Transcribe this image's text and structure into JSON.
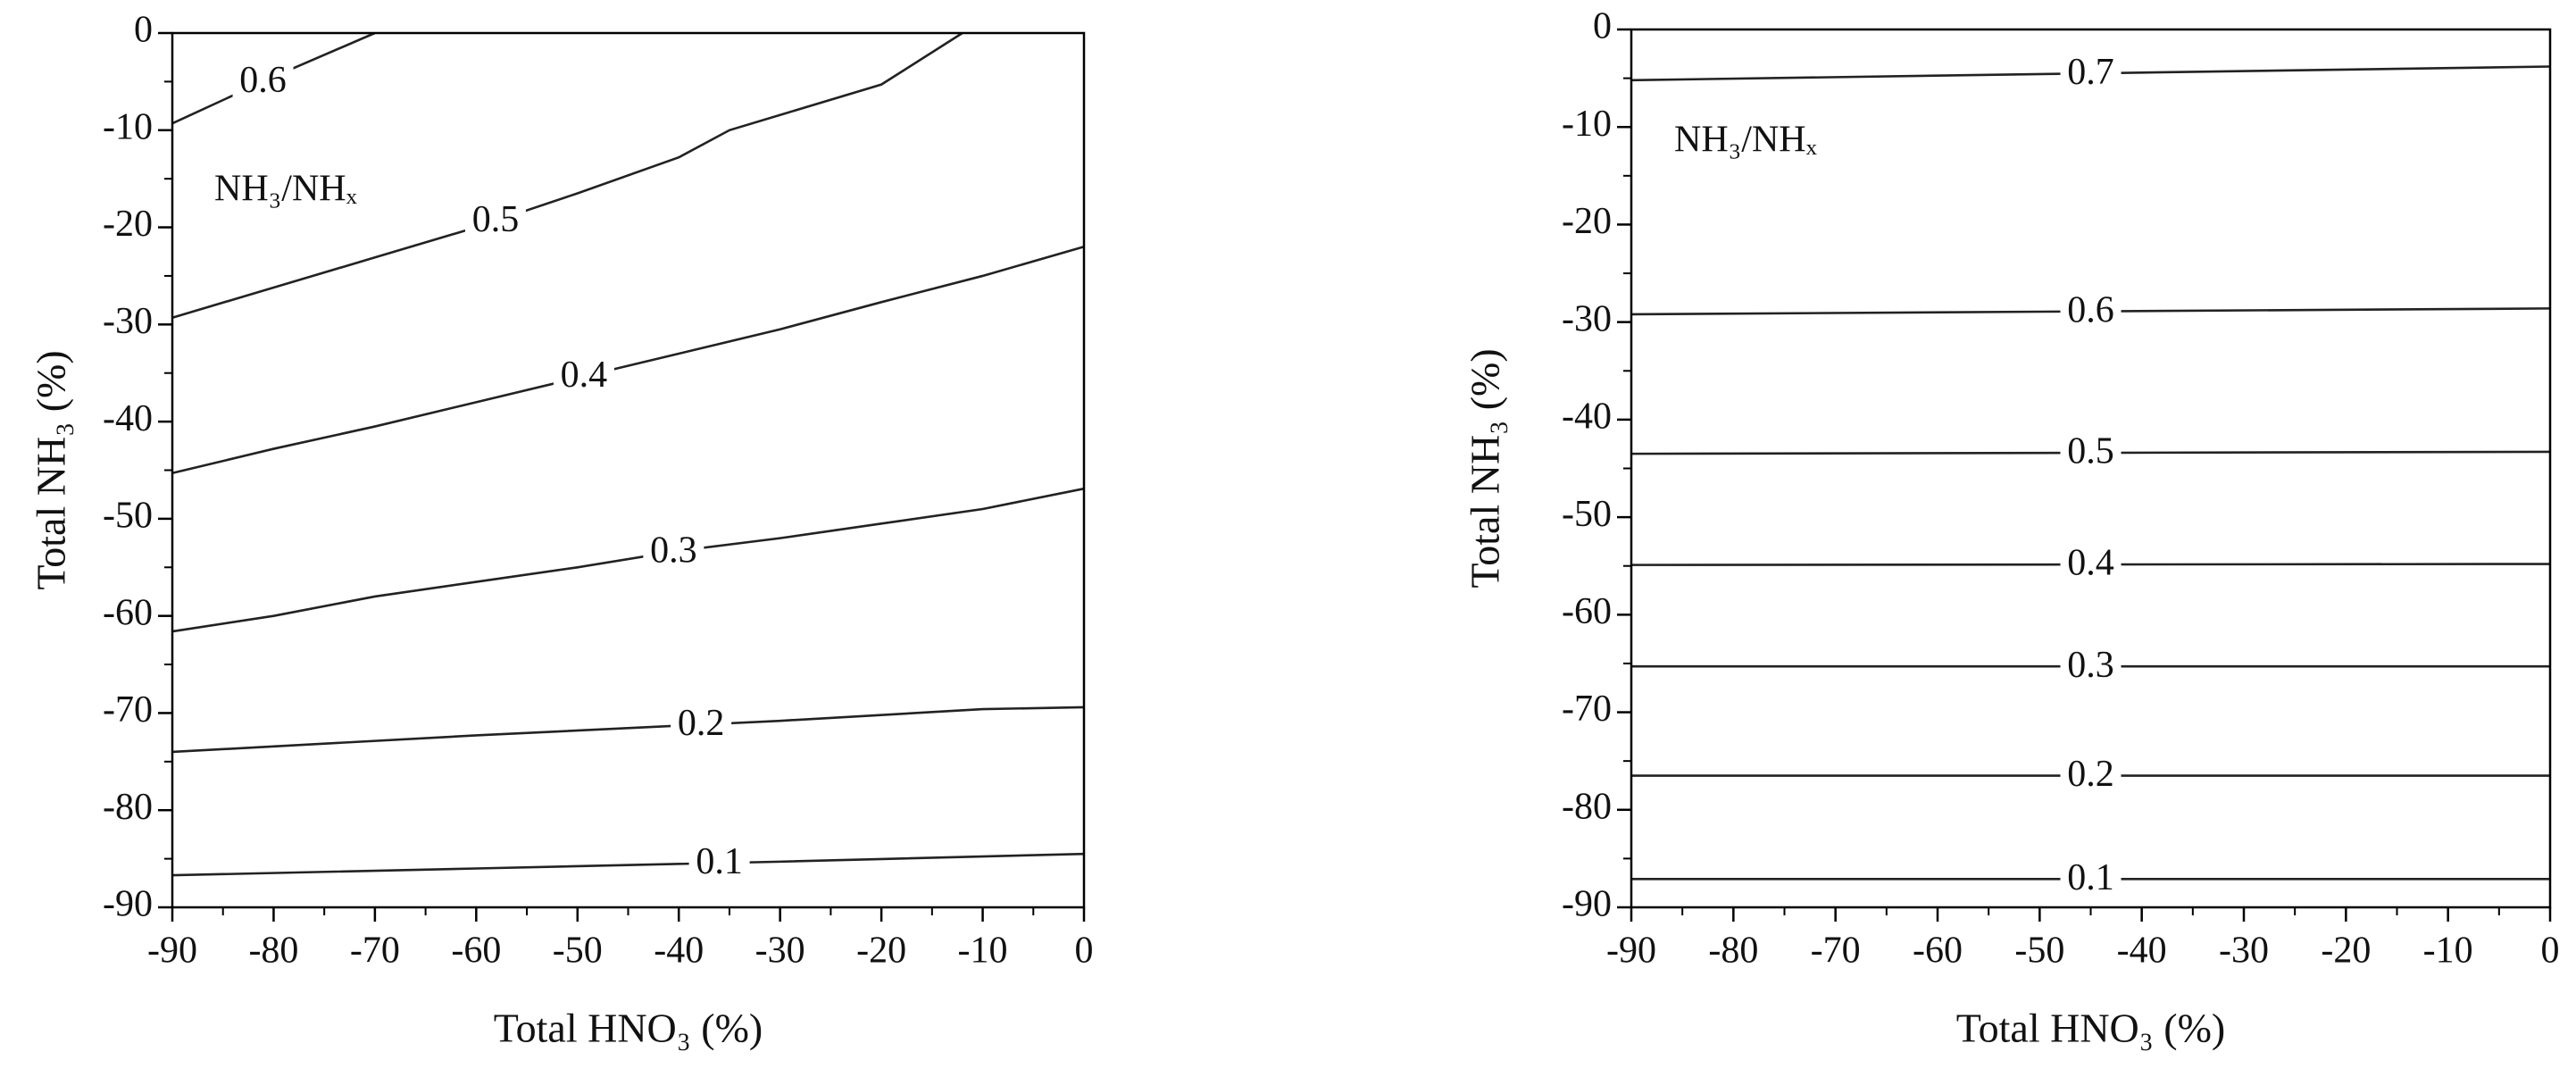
{
  "chart_data": [
    {
      "type": "contour",
      "xlabel": "Total HNO₃ (%)",
      "ylabel": "Total NH₃ (%)",
      "annotation": "NH₃/NHₓ",
      "xlim": [
        -90,
        0
      ],
      "ylim": [
        -90,
        0
      ],
      "xticks": [
        -90,
        -80,
        -70,
        -60,
        -50,
        -40,
        -30,
        -20,
        -10,
        0
      ],
      "yticks": [
        0,
        -10,
        -20,
        -30,
        -40,
        -50,
        -60,
        -70,
        -80,
        -90
      ],
      "series": [
        {
          "name": "0.6",
          "color": "#222222",
          "x": [
            -90,
            -80,
            -70
          ],
          "values": [
            -9.3,
            -4.5,
            0
          ]
        },
        {
          "name": "0.5",
          "color": "#222222",
          "x": [
            -90,
            -80,
            -70,
            -60,
            -50,
            -40,
            -35,
            -20,
            -12
          ],
          "values": [
            -29.3,
            -26.2,
            -23.1,
            -20,
            -16.5,
            -12.8,
            -10,
            -5.3,
            0
          ]
        },
        {
          "name": "0.4",
          "color": "#222222",
          "x": [
            -90,
            -80,
            -70,
            -60,
            -50,
            -40,
            -30,
            -20,
            -10,
            0
          ],
          "values": [
            -45.3,
            -42.8,
            -40.5,
            -38,
            -35.5,
            -33,
            -30.5,
            -27.7,
            -25,
            -22
          ]
        },
        {
          "name": "0.3",
          "color": "#222222",
          "x": [
            -90,
            -80,
            -70,
            -60,
            -50,
            -40,
            -30,
            -20,
            -10,
            0
          ],
          "values": [
            -61.6,
            -60,
            -58,
            -56.5,
            -55,
            -53.3,
            -52,
            -50.5,
            -49,
            -46.9
          ]
        },
        {
          "name": "0.2",
          "color": "#222222",
          "x": [
            -90,
            -60,
            -30,
            -10,
            0
          ],
          "values": [
            -74,
            -72.3,
            -70.8,
            -69.6,
            -69.4
          ]
        },
        {
          "name": "0.1",
          "color": "#222222",
          "x": [
            -90,
            -60,
            -30,
            0
          ],
          "values": [
            -86.7,
            -86,
            -85.3,
            -84.5
          ]
        }
      ]
    },
    {
      "type": "contour",
      "xlabel": "Total HNO₃ (%)",
      "ylabel": "Total NH₃ (%)",
      "annotation": "NH₃/NHₓ",
      "xlim": [
        -90,
        0
      ],
      "ylim": [
        -90,
        0
      ],
      "xticks": [
        -90,
        -80,
        -70,
        -60,
        -50,
        -40,
        -30,
        -20,
        -10,
        0
      ],
      "yticks": [
        0,
        -10,
        -20,
        -30,
        -40,
        -50,
        -60,
        -70,
        -80,
        -90
      ],
      "series": [
        {
          "name": "0.7",
          "color": "#222222",
          "x": [
            -90,
            -45,
            0
          ],
          "values": [
            -5.2,
            -4.5,
            -3.8
          ]
        },
        {
          "name": "0.6",
          "color": "#222222",
          "x": [
            -90,
            -45,
            0
          ],
          "values": [
            -29.2,
            -28.9,
            -28.6
          ]
        },
        {
          "name": "0.5",
          "color": "#222222",
          "x": [
            -90,
            -45,
            0
          ],
          "values": [
            -43.5,
            -43.4,
            -43.3
          ]
        },
        {
          "name": "0.4",
          "color": "#222222",
          "x": [
            -90,
            -45,
            0
          ],
          "values": [
            -54.9,
            -54.85,
            -54.8
          ]
        },
        {
          "name": "0.3",
          "color": "#222222",
          "x": [
            -90,
            -45,
            0
          ],
          "values": [
            -65.3,
            -65.3,
            -65.3
          ]
        },
        {
          "name": "0.2",
          "color": "#222222",
          "x": [
            -90,
            -45,
            0
          ],
          "values": [
            -76.5,
            -76.5,
            -76.5
          ]
        },
        {
          "name": "0.1",
          "color": "#222222",
          "x": [
            -90,
            -45,
            0
          ],
          "values": [
            -87.1,
            -87.1,
            -87.1
          ]
        }
      ]
    }
  ]
}
